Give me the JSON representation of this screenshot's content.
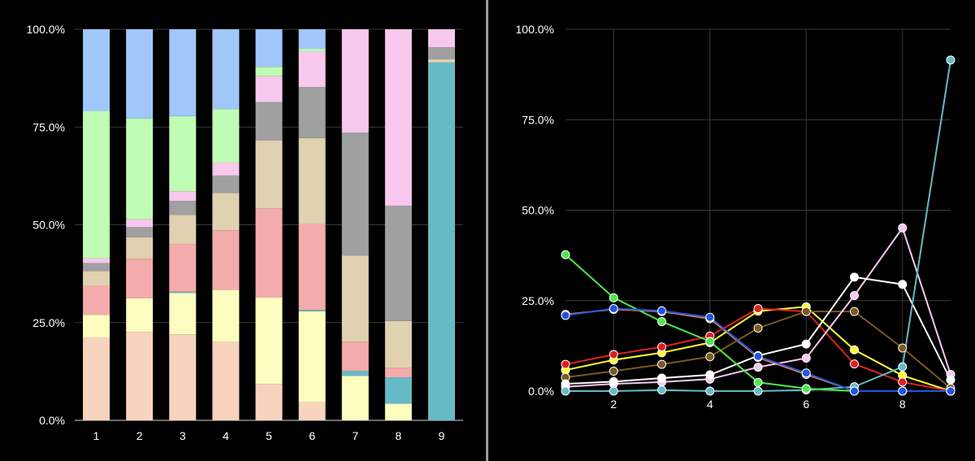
{
  "chart_data": [
    {
      "type": "bar",
      "stacked": true,
      "normalized": true,
      "categories": [
        "1",
        "2",
        "3",
        "4",
        "5",
        "6",
        "7",
        "8",
        "9"
      ],
      "ylim": [
        0,
        100
      ],
      "y_ticks": [
        "0.0%",
        "25.0%",
        "50.0%",
        "75.0%",
        "100.0%"
      ],
      "grid": true,
      "series": [
        {
          "color": "#f8d3bd",
          "values": [
            21.2,
            22.6,
            22.0,
            20.0,
            9.3,
            4.6,
            0,
            0,
            0
          ]
        },
        {
          "color": "#fdfdc0",
          "values": [
            5.8,
            8.6,
            10.6,
            13.4,
            22.1,
            23.3,
            11.4,
            4.3,
            0
          ]
        },
        {
          "color": "#66bac6",
          "values": [
            0,
            0,
            0.3,
            0,
            0,
            0.3,
            1.2,
            6.7,
            91.5
          ]
        },
        {
          "color": "#f3abab",
          "values": [
            7.4,
            10.1,
            12.2,
            15.2,
            22.8,
            22.0,
            7.5,
            2.5,
            0
          ]
        },
        {
          "color": "#e0d1b0",
          "values": [
            3.8,
            5.5,
            7.4,
            9.5,
            17.4,
            22.0,
            22.0,
            11.9,
            0.8
          ]
        },
        {
          "color": "#a0a0a0",
          "values": [
            2.0,
            2.6,
            3.6,
            4.5,
            9.8,
            13.0,
            31.5,
            29.5,
            3.1
          ]
        },
        {
          "color": "#f8c8ee",
          "values": [
            1.2,
            2.0,
            2.5,
            3.3,
            6.6,
            9.1,
            26.4,
            45.1,
            4.6
          ]
        },
        {
          "color": "#c0fcb3",
          "values": [
            37.7,
            25.8,
            19.2,
            13.7,
            2.4,
            0.7,
            0,
            0,
            0
          ]
        },
        {
          "color": "#a1c6fa",
          "values": [
            20.9,
            22.8,
            22.2,
            20.4,
            9.6,
            5.0,
            0,
            0,
            0
          ]
        }
      ]
    },
    {
      "type": "line",
      "x": [
        1,
        2,
        3,
        4,
        5,
        6,
        7,
        8,
        9
      ],
      "xlim": [
        1,
        9
      ],
      "x_ticks": [
        "2",
        "4",
        "6",
        "8"
      ],
      "ylim": [
        0,
        100
      ],
      "y_ticks": [
        "0.0%",
        "25.0%",
        "50.0%",
        "75.0%",
        "100.0%"
      ],
      "grid": true,
      "series": [
        {
          "color": "#e3804a",
          "values": [
            21.2,
            22.6,
            22.0,
            20.0,
            9.3,
            4.6,
            0,
            0,
            0
          ]
        },
        {
          "color": "#ffff33",
          "values": [
            5.8,
            8.6,
            10.6,
            13.4,
            22.1,
            23.3,
            11.4,
            4.3,
            0
          ]
        },
        {
          "color": "#e02020",
          "values": [
            7.4,
            10.1,
            12.2,
            15.2,
            22.8,
            22.0,
            7.5,
            2.5,
            0
          ]
        },
        {
          "color": "#7a5a20",
          "values": [
            3.8,
            5.5,
            7.4,
            9.5,
            17.4,
            22.0,
            22.0,
            11.9,
            0.8
          ]
        },
        {
          "color": "#f8c8ee",
          "values": [
            1.2,
            2.0,
            2.5,
            3.3,
            6.6,
            9.1,
            26.4,
            45.1,
            4.6
          ]
        },
        {
          "color": "#ffffff",
          "values": [
            2.0,
            2.6,
            3.6,
            4.5,
            9.8,
            13.0,
            31.5,
            29.5,
            3.1
          ]
        },
        {
          "color": "#66bac6",
          "values": [
            0,
            0,
            0.3,
            0,
            0,
            0.3,
            1.2,
            6.7,
            91.5
          ]
        },
        {
          "color": "#4ee84e",
          "values": [
            37.7,
            25.8,
            19.2,
            13.7,
            2.4,
            0.7,
            0,
            0,
            0
          ]
        },
        {
          "color": "#2255dd",
          "values": [
            20.9,
            22.8,
            22.2,
            20.4,
            9.6,
            5.0,
            0,
            0,
            0
          ]
        }
      ]
    }
  ]
}
